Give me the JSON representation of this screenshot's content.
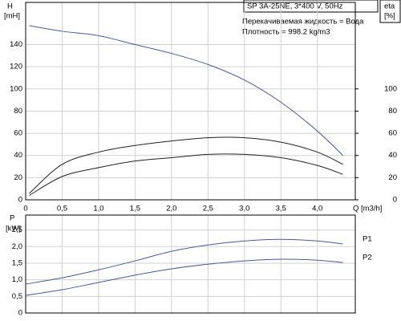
{
  "chart_data": [
    {
      "type": "line",
      "title": "SP 3A-25NE, 3*400 V, 50Hz",
      "annotations": [
        "Перекачиваемая жидкость = Вода",
        "Плотность = 998.2 kg/m3"
      ],
      "y_label": "H",
      "y_unit": "[mH]",
      "y2_label": "eta",
      "y2_unit": "[%]",
      "x_label": "Q [m3/h]",
      "xlim": [
        0,
        4.52
      ],
      "xticks": [
        0,
        {
          "value": 0.5,
          "label": "0,5"
        },
        {
          "value": 1,
          "label": "1,0"
        },
        {
          "value": 1.5,
          "label": "1,5"
        },
        {
          "value": 2,
          "label": "2,0"
        },
        {
          "value": 2.5,
          "label": "2,5"
        },
        {
          "value": 3,
          "label": "3,0"
        },
        {
          "value": 3.5,
          "label": "3,5"
        },
        {
          "value": 4,
          "label": "4,0"
        }
      ],
      "xtick_labels": true,
      "ylim": [
        0,
        178
      ],
      "yticks": [
        0,
        20,
        40,
        60,
        80,
        100,
        120,
        140
      ],
      "y2lim": [
        0,
        178
      ],
      "y2ticks": [
        0,
        20,
        40,
        60,
        80,
        100
      ],
      "grid": true,
      "x": [
        0.05,
        0.5,
        1,
        1.5,
        2,
        2.5,
        3,
        3.5,
        4,
        4.35
      ],
      "series": [
        {
          "color": "#4a5a9a",
          "values": [
            157,
            152,
            148,
            140,
            132,
            122,
            108,
            88,
            62,
            40
          ]
        },
        {
          "color": "#222222",
          "axis": "y2",
          "values": [
            5.8,
            32,
            43,
            49,
            53,
            56,
            56,
            52,
            43,
            32
          ]
        },
        {
          "color": "#222222",
          "axis": "y2",
          "values": [
            4,
            21,
            29,
            35,
            38,
            41,
            41,
            38,
            31,
            23
          ]
        }
      ]
    },
    {
      "type": "line",
      "y_label": "P",
      "y_unit": "[kW]",
      "xlim": [
        0,
        4.52
      ],
      "xticks": [
        0,
        0.5,
        1,
        1.5,
        2,
        2.5,
        3,
        3.5,
        4
      ],
      "xtick_labels": false,
      "ylim": [
        0,
        2.95
      ],
      "yticks": [
        0,
        {
          "value": 0.5,
          "label": "0,5"
        },
        {
          "value": 1,
          "label": "1,0"
        },
        {
          "value": 1.5,
          "label": "1,5"
        },
        {
          "value": 2,
          "label": "2,0"
        },
        {
          "value": 2.5,
          "label": "2,5"
        }
      ],
      "grid": true,
      "x": [
        0,
        0.5,
        1,
        1.5,
        2,
        2.5,
        3,
        3.5,
        4,
        4.35
      ],
      "series": [
        {
          "name": "P1",
          "color": "#4a5a9a",
          "values": [
            0.87,
            1.06,
            1.3,
            1.57,
            1.86,
            2.05,
            2.17,
            2.22,
            2.17,
            2.08
          ]
        },
        {
          "name": "P2",
          "color": "#4a5a9a",
          "values": [
            0.53,
            0.7,
            0.92,
            1.14,
            1.33,
            1.47,
            1.57,
            1.62,
            1.59,
            1.52
          ]
        }
      ]
    }
  ]
}
